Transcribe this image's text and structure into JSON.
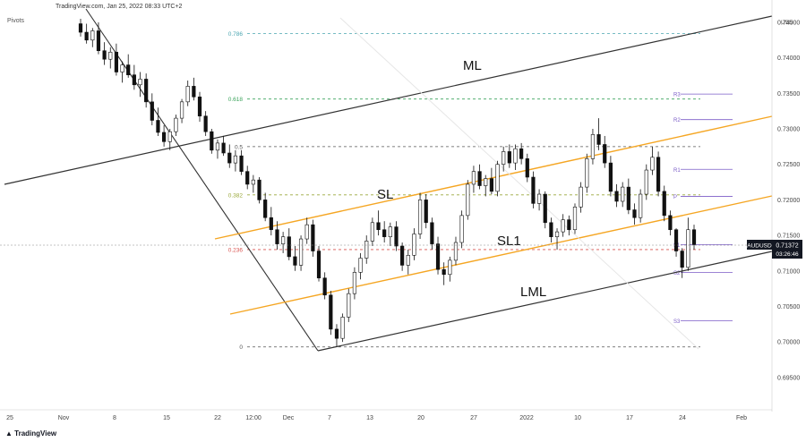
{
  "header": {
    "text": "TradingView.com, Jan 25, 2022 08:33 UTC+2",
    "indicator": "Pivots",
    "brand": "TradingView",
    "currency": "USD"
  },
  "colors": {
    "channel": "#f5a623",
    "fork": "#333333",
    "candle": "#111111",
    "grid_label": "#444444",
    "fib_0786": "#4aa5b0",
    "fib_0618": "#3aa35b",
    "fib_05": "#555555",
    "fib_0382": "#9aa83a",
    "fib_0236": "#d9534f",
    "fib_0": "#555555",
    "pivot": "#7b5cc7",
    "price_box": "#131722"
  },
  "chart_data": {
    "type": "candlestick",
    "instrument": "AUDUSD",
    "last_price": "0.71372",
    "countdown": "03:26:46",
    "y_axis": {
      "ylim": [
        0.691,
        0.746
      ],
      "ticks": [
        "0.74500",
        "0.74000",
        "0.73500",
        "0.73000",
        "0.72500",
        "0.72000",
        "0.71500",
        "0.71000",
        "0.70500",
        "0.70000",
        "0.69500"
      ]
    },
    "x_axis": {
      "ticks": [
        "25",
        "Nov",
        "8",
        "15",
        "22",
        "12:00",
        "Dec",
        "7",
        "13",
        "20",
        "27",
        "2022",
        "10",
        "17",
        "24",
        "Feb"
      ]
    },
    "fibonacci": [
      {
        "label": "0.786",
        "value": 0.7434
      },
      {
        "label": "0.618",
        "value": 0.7342
      },
      {
        "label": "0.5",
        "value": 0.7275
      },
      {
        "label": "0.382",
        "value": 0.7207
      },
      {
        "label": "0.236",
        "value": 0.713
      },
      {
        "label": "0",
        "value": 0.6993
      }
    ],
    "pivots": [
      {
        "label": "R3",
        "value": 0.7349
      },
      {
        "label": "R2",
        "value": 0.7313
      },
      {
        "label": "R1",
        "value": 0.7243
      },
      {
        "label": "P",
        "value": 0.7205
      },
      {
        "label": "S1",
        "value": 0.7137
      },
      {
        "label": "S2",
        "value": 0.7098
      },
      {
        "label": "S3",
        "value": 0.703
      }
    ],
    "annotations": [
      {
        "label": "ML"
      },
      {
        "label": "SL"
      },
      {
        "label": "SL1"
      },
      {
        "label": "LML"
      }
    ],
    "candles": [
      [
        0.7448,
        0.7455,
        0.743,
        0.7436
      ],
      [
        0.7436,
        0.7448,
        0.742,
        0.7425
      ],
      [
        0.7425,
        0.7442,
        0.7415,
        0.7438
      ],
      [
        0.7438,
        0.745,
        0.7405,
        0.741
      ],
      [
        0.741,
        0.7422,
        0.739,
        0.7398
      ],
      [
        0.7398,
        0.7415,
        0.7385,
        0.7408
      ],
      [
        0.7408,
        0.742,
        0.7375,
        0.738
      ],
      [
        0.738,
        0.7395,
        0.7365,
        0.739
      ],
      [
        0.739,
        0.7405,
        0.7372,
        0.7376
      ],
      [
        0.7376,
        0.739,
        0.7355,
        0.7362
      ],
      [
        0.7362,
        0.738,
        0.7345,
        0.737
      ],
      [
        0.737,
        0.7378,
        0.733,
        0.7338
      ],
      [
        0.7338,
        0.735,
        0.7305,
        0.7312
      ],
      [
        0.7312,
        0.733,
        0.729,
        0.7295
      ],
      [
        0.7295,
        0.7305,
        0.7275,
        0.7282
      ],
      [
        0.7282,
        0.73,
        0.727,
        0.7296
      ],
      [
        0.7296,
        0.732,
        0.729,
        0.7315
      ],
      [
        0.7315,
        0.7342,
        0.7308,
        0.7338
      ],
      [
        0.7338,
        0.7368,
        0.7332,
        0.736
      ],
      [
        0.736,
        0.7372,
        0.734,
        0.7345
      ],
      [
        0.7345,
        0.7352,
        0.731,
        0.7318
      ],
      [
        0.7318,
        0.7325,
        0.729,
        0.7296
      ],
      [
        0.7296,
        0.73,
        0.7265,
        0.727
      ],
      [
        0.727,
        0.7285,
        0.7258,
        0.728
      ],
      [
        0.728,
        0.729,
        0.7262,
        0.7266
      ],
      [
        0.7266,
        0.7278,
        0.7245,
        0.7252
      ],
      [
        0.7252,
        0.727,
        0.724,
        0.7262
      ],
      [
        0.7262,
        0.727,
        0.7235,
        0.724
      ],
      [
        0.724,
        0.7248,
        0.7215,
        0.7222
      ],
      [
        0.7222,
        0.7235,
        0.721,
        0.7228
      ],
      [
        0.7228,
        0.7232,
        0.7195,
        0.72
      ],
      [
        0.72,
        0.721,
        0.717,
        0.7175
      ],
      [
        0.7175,
        0.719,
        0.715,
        0.7158
      ],
      [
        0.7158,
        0.717,
        0.713,
        0.7138
      ],
      [
        0.7138,
        0.7155,
        0.7125,
        0.7148
      ],
      [
        0.7148,
        0.716,
        0.7115,
        0.712
      ],
      [
        0.712,
        0.7135,
        0.71,
        0.7108
      ],
      [
        0.7108,
        0.715,
        0.71,
        0.7145
      ],
      [
        0.7145,
        0.7175,
        0.7138,
        0.7165
      ],
      [
        0.7165,
        0.7172,
        0.712,
        0.7128
      ],
      [
        0.7128,
        0.7135,
        0.7085,
        0.709
      ],
      [
        0.709,
        0.7098,
        0.706,
        0.7066
      ],
      [
        0.7066,
        0.7072,
        0.701,
        0.7018
      ],
      [
        0.7018,
        0.7025,
        0.6993,
        0.7005
      ],
      [
        0.7005,
        0.704,
        0.7,
        0.7035
      ],
      [
        0.7035,
        0.7075,
        0.7028,
        0.7068
      ],
      [
        0.7068,
        0.7105,
        0.706,
        0.7098
      ],
      [
        0.7098,
        0.7125,
        0.7088,
        0.7118
      ],
      [
        0.7118,
        0.715,
        0.711,
        0.7142
      ],
      [
        0.7142,
        0.7175,
        0.7135,
        0.7168
      ],
      [
        0.7168,
        0.7185,
        0.715,
        0.7158
      ],
      [
        0.7158,
        0.717,
        0.714,
        0.7148
      ],
      [
        0.7148,
        0.7168,
        0.7135,
        0.7162
      ],
      [
        0.7162,
        0.717,
        0.7128,
        0.7135
      ],
      [
        0.7135,
        0.714,
        0.71,
        0.7108
      ],
      [
        0.7108,
        0.713,
        0.7095,
        0.7122
      ],
      [
        0.7122,
        0.716,
        0.7115,
        0.7152
      ],
      [
        0.7152,
        0.721,
        0.7145,
        0.72
      ],
      [
        0.72,
        0.7208,
        0.716,
        0.7168
      ],
      [
        0.7168,
        0.7175,
        0.713,
        0.7138
      ],
      [
        0.7138,
        0.7148,
        0.7095,
        0.7102
      ],
      [
        0.7102,
        0.7112,
        0.708,
        0.7095
      ],
      [
        0.7095,
        0.712,
        0.7085,
        0.7115
      ],
      [
        0.7115,
        0.7148,
        0.7108,
        0.714
      ],
      [
        0.714,
        0.7185,
        0.7132,
        0.7178
      ],
      [
        0.7178,
        0.7228,
        0.7172,
        0.7222
      ],
      [
        0.7222,
        0.7248,
        0.721,
        0.724
      ],
      [
        0.724,
        0.725,
        0.7215,
        0.722
      ],
      [
        0.722,
        0.7235,
        0.7205,
        0.723
      ],
      [
        0.723,
        0.7245,
        0.7208,
        0.7212
      ],
      [
        0.7212,
        0.7255,
        0.7205,
        0.725
      ],
      [
        0.725,
        0.7275,
        0.724,
        0.7268
      ],
      [
        0.7268,
        0.7278,
        0.7245,
        0.7252
      ],
      [
        0.7252,
        0.7278,
        0.7242,
        0.7272
      ],
      [
        0.7272,
        0.728,
        0.725,
        0.7258
      ],
      [
        0.7258,
        0.7265,
        0.7225,
        0.7232
      ],
      [
        0.7232,
        0.724,
        0.7188,
        0.7195
      ],
      [
        0.7195,
        0.7215,
        0.7185,
        0.7208
      ],
      [
        0.7208,
        0.7212,
        0.716,
        0.7168
      ],
      [
        0.7168,
        0.7175,
        0.714,
        0.7148
      ],
      [
        0.7148,
        0.716,
        0.713,
        0.7155
      ],
      [
        0.7155,
        0.718,
        0.7148,
        0.7172
      ],
      [
        0.7172,
        0.7178,
        0.715,
        0.7158
      ],
      [
        0.7158,
        0.7195,
        0.7152,
        0.719
      ],
      [
        0.719,
        0.7225,
        0.7182,
        0.7218
      ],
      [
        0.7218,
        0.7265,
        0.721,
        0.7258
      ],
      [
        0.7258,
        0.73,
        0.725,
        0.7292
      ],
      [
        0.7292,
        0.7315,
        0.727,
        0.7278
      ],
      [
        0.7278,
        0.729,
        0.7245,
        0.7252
      ],
      [
        0.7252,
        0.7262,
        0.7205,
        0.7212
      ],
      [
        0.7212,
        0.7222,
        0.719,
        0.7198
      ],
      [
        0.7198,
        0.7225,
        0.719,
        0.7218
      ],
      [
        0.7218,
        0.723,
        0.718,
        0.7186
      ],
      [
        0.7186,
        0.7195,
        0.7165,
        0.7175
      ],
      [
        0.7175,
        0.7215,
        0.7168,
        0.7208
      ],
      [
        0.7208,
        0.725,
        0.72,
        0.7242
      ],
      [
        0.7242,
        0.7275,
        0.7235,
        0.726
      ],
      [
        0.726,
        0.7268,
        0.7205,
        0.7212
      ],
      [
        0.7212,
        0.722,
        0.717,
        0.7178
      ],
      [
        0.7178,
        0.7185,
        0.715,
        0.7158
      ],
      [
        0.7158,
        0.716,
        0.712,
        0.7128
      ],
      [
        0.7128,
        0.7132,
        0.709,
        0.7105
      ],
      [
        0.7105,
        0.7175,
        0.71,
        0.7158
      ],
      [
        0.7158,
        0.7165,
        0.713,
        0.7137
      ]
    ]
  }
}
